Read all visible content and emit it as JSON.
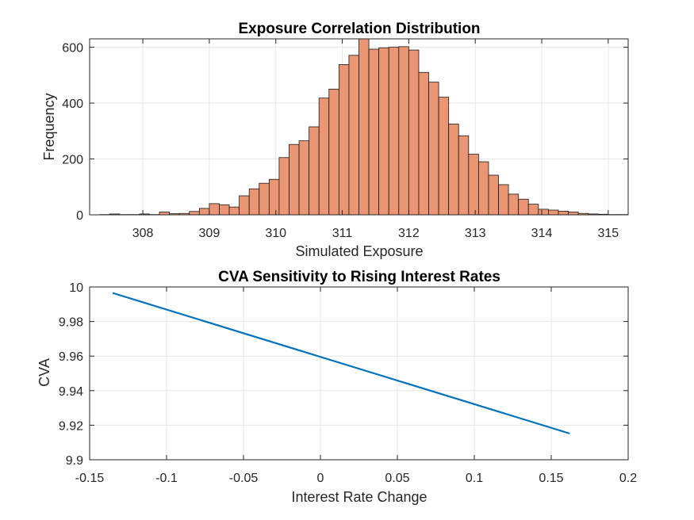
{
  "chart_data": [
    {
      "type": "bar",
      "title": "Exposure Correlation Distribution",
      "xlabel": "Simulated Exposure",
      "ylabel": "Frequency",
      "xlim": [
        307.2,
        315.3
      ],
      "ylim": [
        0,
        630
      ],
      "xticks": [
        308,
        309,
        310,
        311,
        312,
        313,
        314,
        315
      ],
      "yticks": [
        0,
        200,
        400,
        600
      ],
      "grid": true,
      "bar_color": "#EA9573",
      "edge_color": "#1a1a1a",
      "bin_start": 307.2,
      "bin_width": 0.15,
      "values": [
        0,
        1,
        3,
        1,
        1,
        3,
        1,
        10,
        4,
        5,
        12,
        23,
        40,
        36,
        28,
        68,
        93,
        113,
        127,
        205,
        252,
        265,
        315,
        418,
        450,
        538,
        571,
        630,
        593,
        598,
        600,
        602,
        590,
        510,
        475,
        421,
        325,
        283,
        217,
        190,
        142,
        108,
        74,
        56,
        38,
        20,
        17,
        13,
        10,
        5,
        3,
        2,
        1,
        1
      ]
    },
    {
      "type": "line",
      "title": "CVA Sensitivity to Rising Interest Rates",
      "xlabel": "Interest Rate Change",
      "ylabel": "CVA",
      "xlim": [
        -0.15,
        0.2
      ],
      "ylim": [
        9.9,
        10.0
      ],
      "xticks": [
        -0.15,
        -0.1,
        -0.05,
        0,
        0.05,
        0.1,
        0.15,
        0.2
      ],
      "ytick_labels": [
        "9.9",
        "9.92",
        "9.94",
        "9.96",
        "9.98",
        "10"
      ],
      "yticks": [
        9.9,
        9.92,
        9.94,
        9.96,
        9.98,
        10.0
      ],
      "grid": true,
      "line_color": "#0072BD",
      "series": [
        {
          "x": [
            -0.135,
            0.162
          ],
          "y": [
            9.9965,
            9.9152
          ]
        }
      ]
    }
  ]
}
